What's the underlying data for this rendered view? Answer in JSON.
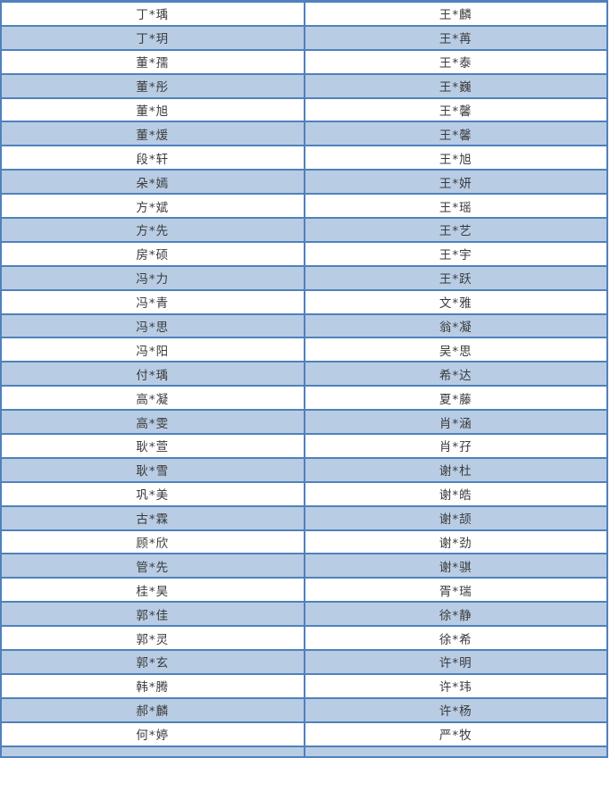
{
  "table": {
    "description_colors": {
      "border": "#4F81BD",
      "stripe_fill": "#B8CCE4",
      "text": "#3a3a3a",
      "background": "#ffffff"
    },
    "rows": [
      {
        "left": "丁*瑀",
        "right": "王*麟"
      },
      {
        "left": "丁*玥",
        "right": "王*苒"
      },
      {
        "left": "董*孺",
        "right": "王*泰"
      },
      {
        "left": "董*彤",
        "right": "王*巍"
      },
      {
        "left": "董*旭",
        "right": "王*馨"
      },
      {
        "left": "董*煖",
        "right": "王*馨"
      },
      {
        "left": "段*轩",
        "right": "王*旭"
      },
      {
        "left": "朵*嫣",
        "right": "王*妍"
      },
      {
        "left": "方*斌",
        "right": "王*瑶"
      },
      {
        "left": "方*先",
        "right": "王*艺"
      },
      {
        "left": "房*硕",
        "right": "王*宇"
      },
      {
        "left": "冯*力",
        "right": "王*跃"
      },
      {
        "left": "冯*青",
        "right": "文*雅"
      },
      {
        "left": "冯*思",
        "right": "翁*凝"
      },
      {
        "left": "冯*阳",
        "right": "吴*思"
      },
      {
        "left": "付*瑀",
        "right": "希*达"
      },
      {
        "left": "高*凝",
        "right": "夏*藤"
      },
      {
        "left": "高*雯",
        "right": "肖*涵"
      },
      {
        "left": "耿*萱",
        "right": "肖*孖"
      },
      {
        "left": "耿*雪",
        "right": "谢*杜"
      },
      {
        "left": "巩*美",
        "right": "谢*皓"
      },
      {
        "left": "古*霖",
        "right": "谢*颉"
      },
      {
        "left": "顾*欣",
        "right": "谢*劲"
      },
      {
        "left": "管*先",
        "right": "谢*骐"
      },
      {
        "left": "桂*昊",
        "right": "胥*瑞"
      },
      {
        "left": "郭*佳",
        "right": "徐*静"
      },
      {
        "left": "郭*灵",
        "right": "徐*希"
      },
      {
        "left": "郭*玄",
        "right": "许*明"
      },
      {
        "left": "韩*腾",
        "right": "许*玮"
      },
      {
        "left": "郝*麟",
        "right": "许*杨"
      },
      {
        "left": "何*婷",
        "right": "严*牧"
      }
    ]
  }
}
